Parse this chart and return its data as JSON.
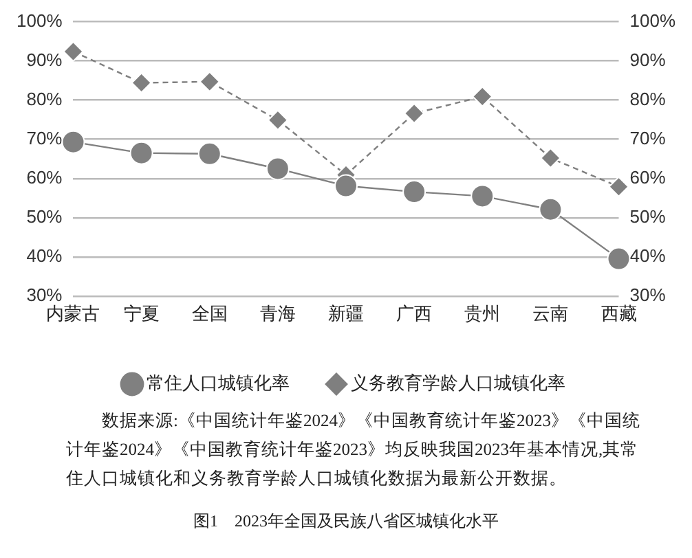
{
  "chart_data": {
    "type": "line",
    "categories": [
      "内蒙古",
      "宁夏",
      "全国",
      "青海",
      "新疆",
      "广西",
      "贵州",
      "云南",
      "西藏"
    ],
    "series": [
      {
        "name": "常住人口城镇化率",
        "color": "#808080",
        "marker": "circle",
        "line_style": "solid",
        "values": [
          69.3,
          66.5,
          66.3,
          62.5,
          58.1,
          56.6,
          55.5,
          52.1,
          39.5
        ]
      },
      {
        "name": "义务教育学龄人口城镇化率",
        "color": "#7f7f7f",
        "marker": "diamond",
        "line_style": "dashed",
        "values": [
          92.4,
          84.4,
          84.7,
          74.9,
          60.9,
          76.6,
          80.9,
          65.2,
          57.9
        ]
      }
    ],
    "ylim": [
      30,
      100
    ],
    "yticks": [
      {
        "value": 30,
        "label": "30%"
      },
      {
        "value": 40,
        "label": "40%"
      },
      {
        "value": 50,
        "label": "50%"
      },
      {
        "value": 60,
        "label": "60%"
      },
      {
        "value": 70,
        "label": "70%"
      },
      {
        "value": 80,
        "label": "80%"
      },
      {
        "value": 90,
        "label": "90%"
      },
      {
        "value": 100,
        "label": "100%"
      }
    ],
    "y2lim": [
      30,
      100
    ],
    "y2ticks": [
      {
        "value": 30,
        "label": "30%"
      },
      {
        "value": 40,
        "label": "40%"
      },
      {
        "value": 50,
        "label": "50%"
      },
      {
        "value": 60,
        "label": "60%"
      },
      {
        "value": 70,
        "label": "70%"
      },
      {
        "value": 80,
        "label": "80%"
      },
      {
        "value": 90,
        "label": "90%"
      },
      {
        "value": 100,
        "label": "100%"
      }
    ],
    "grid": "y",
    "legend": "bottom",
    "annotations": [
      "数据来源:《中国统计年鉴2024》《中国教育统计年鉴2023》《中国统计年鉴2024》《中国教育统计年鉴2023》均反映我国2023年基本情况,其常住人口城镇化和义务教育学龄人口城镇化数据为最新公开数据。",
      "图1　2023年全国及民族八省区城镇化水平"
    ]
  }
}
